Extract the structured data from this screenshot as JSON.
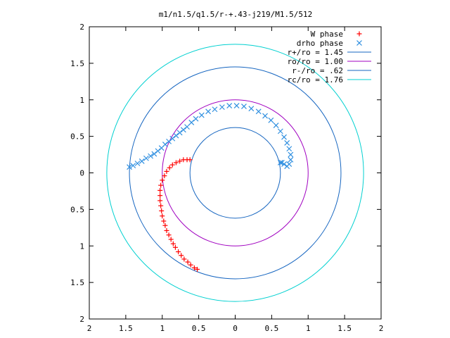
{
  "colors": {
    "w_phase": "#ff0000",
    "drho_phase": "#2f8fe0",
    "r_plus": "#1565c0",
    "ro": "#a000c0",
    "r_minus": "#1565c0",
    "rc": "#00d0d0",
    "axis": "#000000"
  },
  "chart_data": {
    "type": "scatter",
    "title": "m1/n1.5/q1.5/r-+.43-j219/M1.5/512",
    "xlim": [
      -2,
      2
    ],
    "ylim": [
      -2,
      2
    ],
    "x_ticks": [
      {
        "value": -2,
        "label": "2"
      },
      {
        "value": -1.5,
        "label": "1.5"
      },
      {
        "value": -1,
        "label": "1"
      },
      {
        "value": -0.5,
        "label": "0.5"
      },
      {
        "value": 0,
        "label": "0"
      },
      {
        "value": 0.5,
        "label": "0.5"
      },
      {
        "value": 1,
        "label": "1"
      },
      {
        "value": 1.5,
        "label": "1.5"
      },
      {
        "value": 2,
        "label": "2"
      }
    ],
    "y_ticks": [
      {
        "value": 2,
        "label": "2"
      },
      {
        "value": 1.5,
        "label": "1.5"
      },
      {
        "value": 1,
        "label": "1"
      },
      {
        "value": 0.5,
        "label": "0.5"
      },
      {
        "value": 0,
        "label": "0"
      },
      {
        "value": -0.5,
        "label": "0.5"
      },
      {
        "value": -1,
        "label": "1"
      },
      {
        "value": -1.5,
        "label": "1.5"
      },
      {
        "value": -2,
        "label": "2"
      }
    ],
    "legend_placement": "top-right",
    "series": [
      {
        "name": "W phase",
        "marker": "plus",
        "color_key": "w_phase",
        "points": [
          [
            -0.62,
            0.18
          ],
          [
            -0.66,
            0.18
          ],
          [
            -0.71,
            0.18
          ],
          [
            -0.76,
            0.16
          ],
          [
            -0.81,
            0.14
          ],
          [
            -0.86,
            0.11
          ],
          [
            -0.9,
            0.07
          ],
          [
            -0.94,
            0.02
          ],
          [
            -0.97,
            -0.04
          ],
          [
            -1.0,
            -0.1
          ],
          [
            -1.02,
            -0.17
          ],
          [
            -1.03,
            -0.24
          ],
          [
            -1.03,
            -0.31
          ],
          [
            -1.03,
            -0.38
          ],
          [
            -1.02,
            -0.45
          ],
          [
            -1.01,
            -0.52
          ],
          [
            -1.0,
            -0.59
          ],
          [
            -0.98,
            -0.66
          ],
          [
            -0.96,
            -0.72
          ],
          [
            -0.94,
            -0.79
          ],
          [
            -0.91,
            -0.85
          ],
          [
            -0.88,
            -0.91
          ],
          [
            -0.85,
            -0.97
          ],
          [
            -0.82,
            -1.02
          ],
          [
            -0.78,
            -1.08
          ],
          [
            -0.74,
            -1.13
          ],
          [
            -0.7,
            -1.18
          ],
          [
            -0.65,
            -1.22
          ],
          [
            -0.61,
            -1.26
          ],
          [
            -0.56,
            -1.3
          ],
          [
            -0.52,
            -1.32
          ]
        ]
      },
      {
        "name": "drho phase",
        "marker": "cross",
        "color_key": "drho_phase",
        "points": [
          [
            -1.45,
            0.08
          ],
          [
            -1.4,
            0.1
          ],
          [
            -1.34,
            0.13
          ],
          [
            -1.28,
            0.16
          ],
          [
            -1.22,
            0.2
          ],
          [
            -1.16,
            0.23
          ],
          [
            -1.11,
            0.26
          ],
          [
            -1.06,
            0.3
          ],
          [
            -1.01,
            0.34
          ],
          [
            -0.96,
            0.39
          ],
          [
            -0.91,
            0.43
          ],
          [
            -0.86,
            0.47
          ],
          [
            -0.81,
            0.51
          ],
          [
            -0.76,
            0.55
          ],
          [
            -0.71,
            0.59
          ],
          [
            -0.66,
            0.63
          ],
          [
            -0.6,
            0.69
          ],
          [
            -0.54,
            0.74
          ],
          [
            -0.46,
            0.79
          ],
          [
            -0.37,
            0.84
          ],
          [
            -0.28,
            0.87
          ],
          [
            -0.18,
            0.9
          ],
          [
            -0.08,
            0.92
          ],
          [
            0.02,
            0.92
          ],
          [
            0.12,
            0.91
          ],
          [
            0.22,
            0.88
          ],
          [
            0.32,
            0.84
          ],
          [
            0.41,
            0.78
          ],
          [
            0.49,
            0.72
          ],
          [
            0.56,
            0.65
          ],
          [
            0.62,
            0.57
          ],
          [
            0.67,
            0.49
          ],
          [
            0.71,
            0.41
          ],
          [
            0.74,
            0.33
          ],
          [
            0.76,
            0.25
          ],
          [
            0.76,
            0.18
          ],
          [
            0.74,
            0.12
          ],
          [
            0.71,
            0.09
          ],
          [
            0.67,
            0.12
          ],
          [
            0.64,
            0.14
          ],
          [
            0.62,
            0.14
          ]
        ]
      },
      {
        "name": "r+/ro = 1.45",
        "type": "circle",
        "radius": 1.45,
        "color_key": "r_plus"
      },
      {
        "name": "ro/ro = 1.00",
        "type": "circle",
        "radius": 1.0,
        "color_key": "ro"
      },
      {
        "name": "r-/ro =  .62",
        "type": "circle",
        "radius": 0.62,
        "color_key": "r_minus"
      },
      {
        "name": "rc/ro = 1.76",
        "type": "circle",
        "radius": 1.76,
        "color_key": "rc"
      }
    ]
  }
}
